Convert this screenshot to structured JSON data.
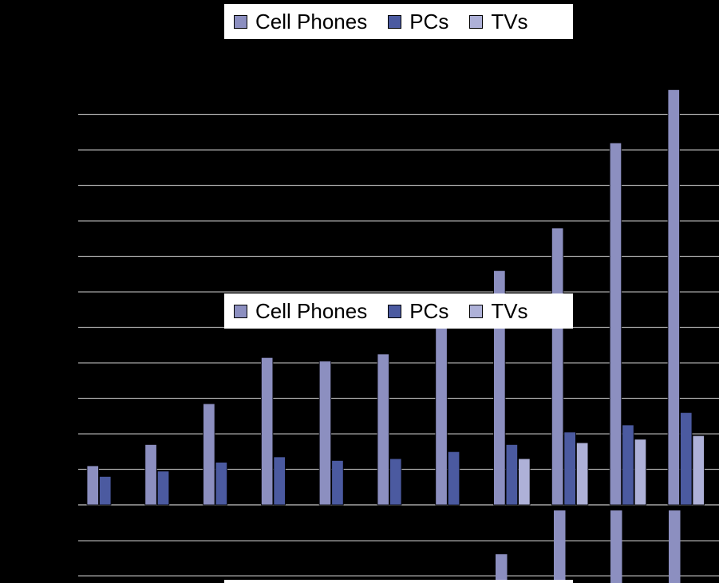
{
  "chart_data": {
    "type": "bar",
    "categories": [
      "",
      "",
      "",
      "",
      "",
      "",
      "",
      "",
      "",
      "",
      ""
    ],
    "series": [
      {
        "name": "Cell Phones",
        "color": "#8c8fc0",
        "values": [
          1.1,
          1.7,
          2.85,
          4.15,
          4.05,
          4.25,
          5.1,
          6.6,
          7.8,
          10.2,
          11.7
        ]
      },
      {
        "name": "PCs",
        "color": "#4b5aa0",
        "values": [
          0.8,
          0.95,
          1.2,
          1.35,
          1.25,
          1.3,
          1.5,
          1.7,
          2.05,
          2.25,
          2.6
        ]
      },
      {
        "name": "TVs",
        "color": "#aeb1d8",
        "values": [
          0,
          0,
          0,
          0,
          0,
          0,
          0,
          1.3,
          1.75,
          1.85,
          1.95
        ]
      }
    ],
    "ylim": [
      0,
      12
    ],
    "gridlines": [
      1,
      2,
      3,
      4,
      5,
      6,
      7,
      8,
      9,
      10,
      11
    ],
    "grid": true,
    "legend": "top",
    "title": "",
    "xlabel": "",
    "ylabel": ""
  },
  "legend_top": {
    "items": [
      {
        "label": "Cell Phones",
        "color": "#8c8fc0"
      },
      {
        "label": "PCs",
        "color": "#4b5aa0"
      },
      {
        "label": "TVs",
        "color": "#aeb1d8"
      }
    ]
  },
  "legend_mid": {
    "items": [
      {
        "label": "Cell Phones",
        "color": "#8c8fc0"
      },
      {
        "label": "PCs",
        "color": "#4b5aa0"
      },
      {
        "label": "TVs",
        "color": "#aeb1d8"
      }
    ]
  },
  "colors": {
    "background": "#000000",
    "gridline": "#a6a6a6",
    "legend_bg": "#ffffff"
  }
}
